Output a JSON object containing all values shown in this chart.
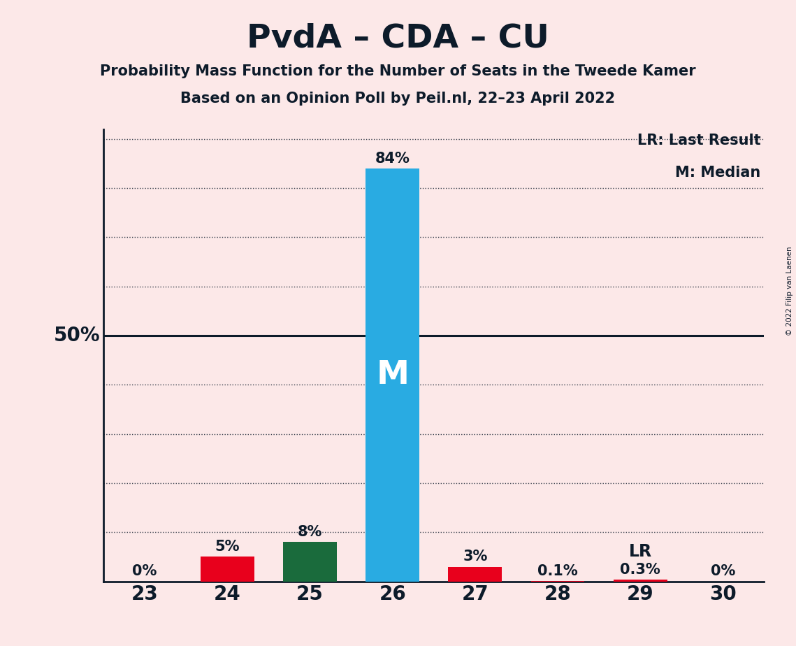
{
  "title": "PvdA – CDA – CU",
  "subtitle1": "Probability Mass Function for the Number of Seats in the Tweede Kamer",
  "subtitle2": "Based on an Opinion Poll by Peil.nl, 22–23 April 2022",
  "copyright": "© 2022 Filip van Laenen",
  "categories": [
    23,
    24,
    25,
    26,
    27,
    28,
    29,
    30
  ],
  "values": [
    0.0,
    5.0,
    8.0,
    84.0,
    3.0,
    0.1,
    0.3,
    0.0
  ],
  "bar_colors": [
    "#e8001c",
    "#e8001c",
    "#1a6b3c",
    "#29abe2",
    "#e8001c",
    "#e8001c",
    "#e8001c",
    "#e8001c"
  ],
  "labels": [
    "0%",
    "5%",
    "8%",
    "84%",
    "3%",
    "0.1%",
    "0.3%",
    "0%"
  ],
  "median_seat": 26,
  "lr_seat": 29,
  "background_color": "#fce8e8",
  "title_color": "#0d1b2a",
  "ylim_max": 92,
  "y50_label": "50%",
  "legend_lr": "LR: Last Result",
  "legend_m": "M: Median",
  "dotted_grid_levels": [
    10,
    20,
    30,
    40,
    60,
    70,
    80,
    90
  ],
  "solid_line_level": 50,
  "bar_width": 0.65
}
